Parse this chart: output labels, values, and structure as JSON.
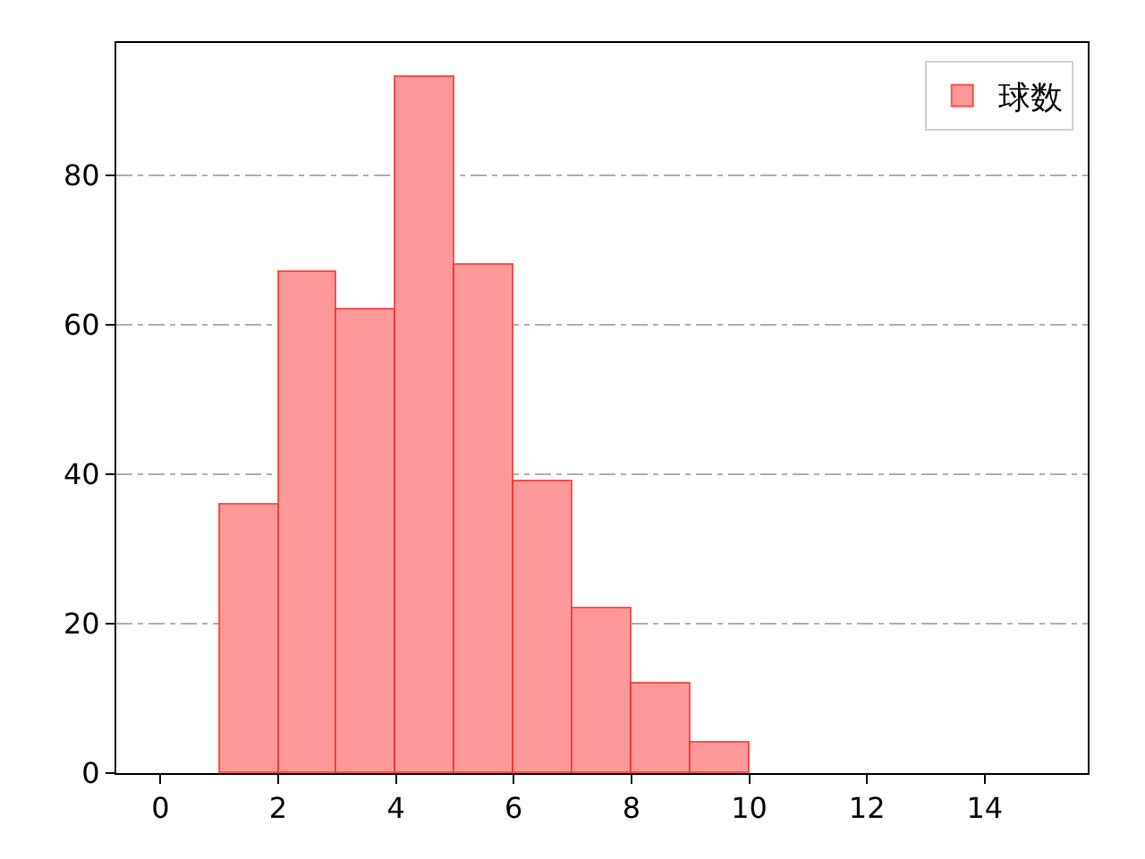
{
  "chart_data": {
    "type": "histogram",
    "bins": [
      1,
      2,
      3,
      4,
      5,
      6,
      7,
      8,
      9,
      10
    ],
    "series": [
      {
        "name": "球数",
        "color": "#ff9999",
        "values": [
          36,
          67,
          62,
          93,
          68,
          39,
          22,
          12,
          4
        ]
      }
    ],
    "xlim": [
      -0.75,
      15.75
    ],
    "xticks": [
      0,
      2,
      4,
      6,
      8,
      10,
      12,
      14
    ],
    "ylim": [
      0,
      97.65
    ],
    "yticks": [
      0,
      20,
      40,
      60,
      80
    ],
    "grid": "y",
    "legend": "top right"
  }
}
